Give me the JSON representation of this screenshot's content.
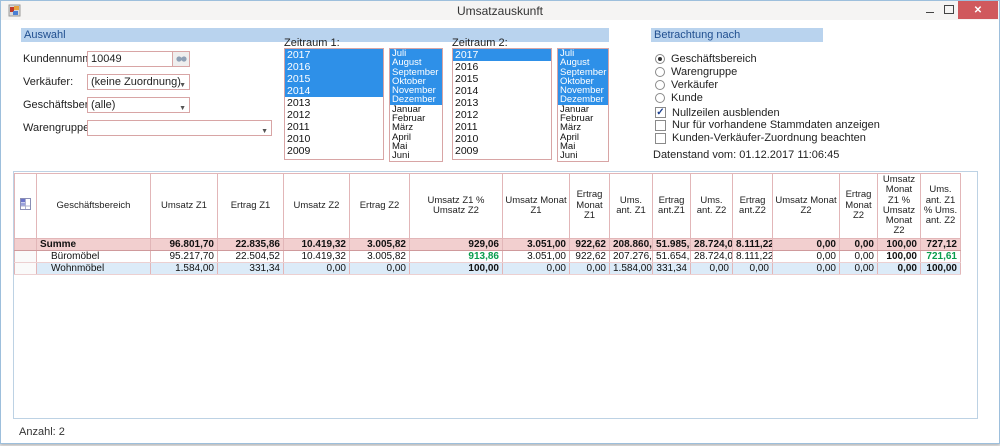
{
  "window": {
    "title": "Umsatzauskunft"
  },
  "icons": {
    "app-icon": "form-window-icon",
    "search-icon": "binoculars",
    "grid-corner-icon": "mini-table",
    "minimize-icon": "minimize-bar",
    "maximize-icon": "maximize-box",
    "close-icon": "✕",
    "dropdown-icon": "▼"
  },
  "colors": {
    "selection_blue": "#2e90e8",
    "panel_header": "#b9d3ee",
    "control_border": "#d8a5a5",
    "summe_row": "#f2cfcf",
    "alt_row": "#dcebf8",
    "positive_green": "#089c4c",
    "close_red": "#d0595d"
  },
  "auswahl": {
    "header": "Auswahl",
    "fields": [
      {
        "label": "Kundennummer:",
        "value": "10049"
      },
      {
        "label": "Verkäufer:",
        "value": "(keine Zuordnung)"
      },
      {
        "label": "Geschäftsbereich:",
        "value": "(alle)"
      },
      {
        "label": "Warengruppe(n):",
        "value": ""
      }
    ]
  },
  "zeitraum1": {
    "label": "Zeitraum 1:",
    "years": [
      "2017",
      "2016",
      "2015",
      "2014",
      "2013",
      "2012",
      "2011",
      "2010",
      "2009"
    ],
    "years_selected": [
      "2017",
      "2016",
      "2015",
      "2014"
    ],
    "months": [
      "Juli",
      "August",
      "September",
      "Oktober",
      "November",
      "Dezember",
      "Januar",
      "Februar",
      "März",
      "April",
      "Mai",
      "Juni"
    ],
    "months_selected": [
      "Juli",
      "August",
      "September",
      "Oktober",
      "November",
      "Dezember"
    ]
  },
  "zeitraum2": {
    "label": "Zeitraum 2:",
    "years": [
      "2017",
      "2016",
      "2015",
      "2014",
      "2013",
      "2012",
      "2011",
      "2010",
      "2009"
    ],
    "years_selected": [
      "2017"
    ],
    "months": [
      "Juli",
      "August",
      "September",
      "Oktober",
      "November",
      "Dezember",
      "Januar",
      "Februar",
      "März",
      "April",
      "Mai",
      "Juni"
    ],
    "months_selected": [
      "Juli",
      "August",
      "September",
      "Oktober",
      "November",
      "Dezember"
    ]
  },
  "betrachtung": {
    "header": "Betrachtung nach",
    "radios": [
      {
        "label": "Geschäftsbereich",
        "checked": true
      },
      {
        "label": "Warengruppe",
        "checked": false
      },
      {
        "label": "Verkäufer",
        "checked": false
      },
      {
        "label": "Kunde",
        "checked": false
      }
    ],
    "checkboxes": [
      {
        "label": "Nullzeilen ausblenden",
        "checked": true
      },
      {
        "label": "Nur für vorhandene Stammdaten anzeigen",
        "checked": false
      },
      {
        "label": "Kunden-Verkäufer-Zuordnung beachten",
        "checked": false
      }
    ],
    "datenstand": "Datenstand vom: 01.12.2017 11:06:45"
  },
  "table": {
    "columns": [
      "Geschäftsbereich",
      "Umsatz Z1",
      "Ertrag Z1",
      "Umsatz Z2",
      "Ertrag Z2",
      "Umsatz Z1 % Umsatz Z2",
      "Umsatz Monat Z1",
      "Ertrag Monat Z1",
      "Ums. ant. Z1",
      "Ertrag ant.Z1",
      "Ums. ant. Z2",
      "Ertrag ant.Z2",
      "Umsatz Monat Z2",
      "Ertrag Monat Z2",
      "Umsatz Monat Z1 % Umsatz Monat Z2",
      "Ums. ant. Z1 % Ums. ant. Z2"
    ],
    "rows": [
      {
        "label": "Summe",
        "type": "summe",
        "cells": [
          "96.801,70",
          "22.835,86",
          "10.419,32",
          "3.005,82",
          "929,06",
          "3.051,00",
          "922,62",
          "208.860,...",
          "51.985,58",
          "28.724,09",
          "8.111,22",
          "0,00",
          "0,00",
          "100,00",
          "727,12"
        ],
        "green": []
      },
      {
        "label": "Büromöbel",
        "type": "normal",
        "cells": [
          "95.217,70",
          "22.504,52",
          "10.419,32",
          "3.005,82",
          "913,86",
          "3.051,00",
          "922,62",
          "207.276,0",
          "51.654,24",
          "28.724,09",
          "8.111,22",
          "0,00",
          "0,00",
          "100,00",
          "721,61"
        ],
        "green": [
          4,
          14
        ]
      },
      {
        "label": "Wohnmöbel",
        "type": "alt",
        "cells": [
          "1.584,00",
          "331,34",
          "0,00",
          "0,00",
          "100,00",
          "0,00",
          "0,00",
          "1.584,00",
          "331,34",
          "0,00",
          "0,00",
          "0,00",
          "0,00",
          "0,00",
          "100,00"
        ],
        "green": []
      }
    ]
  },
  "footer": {
    "anzahl": "Anzahl: 2"
  }
}
